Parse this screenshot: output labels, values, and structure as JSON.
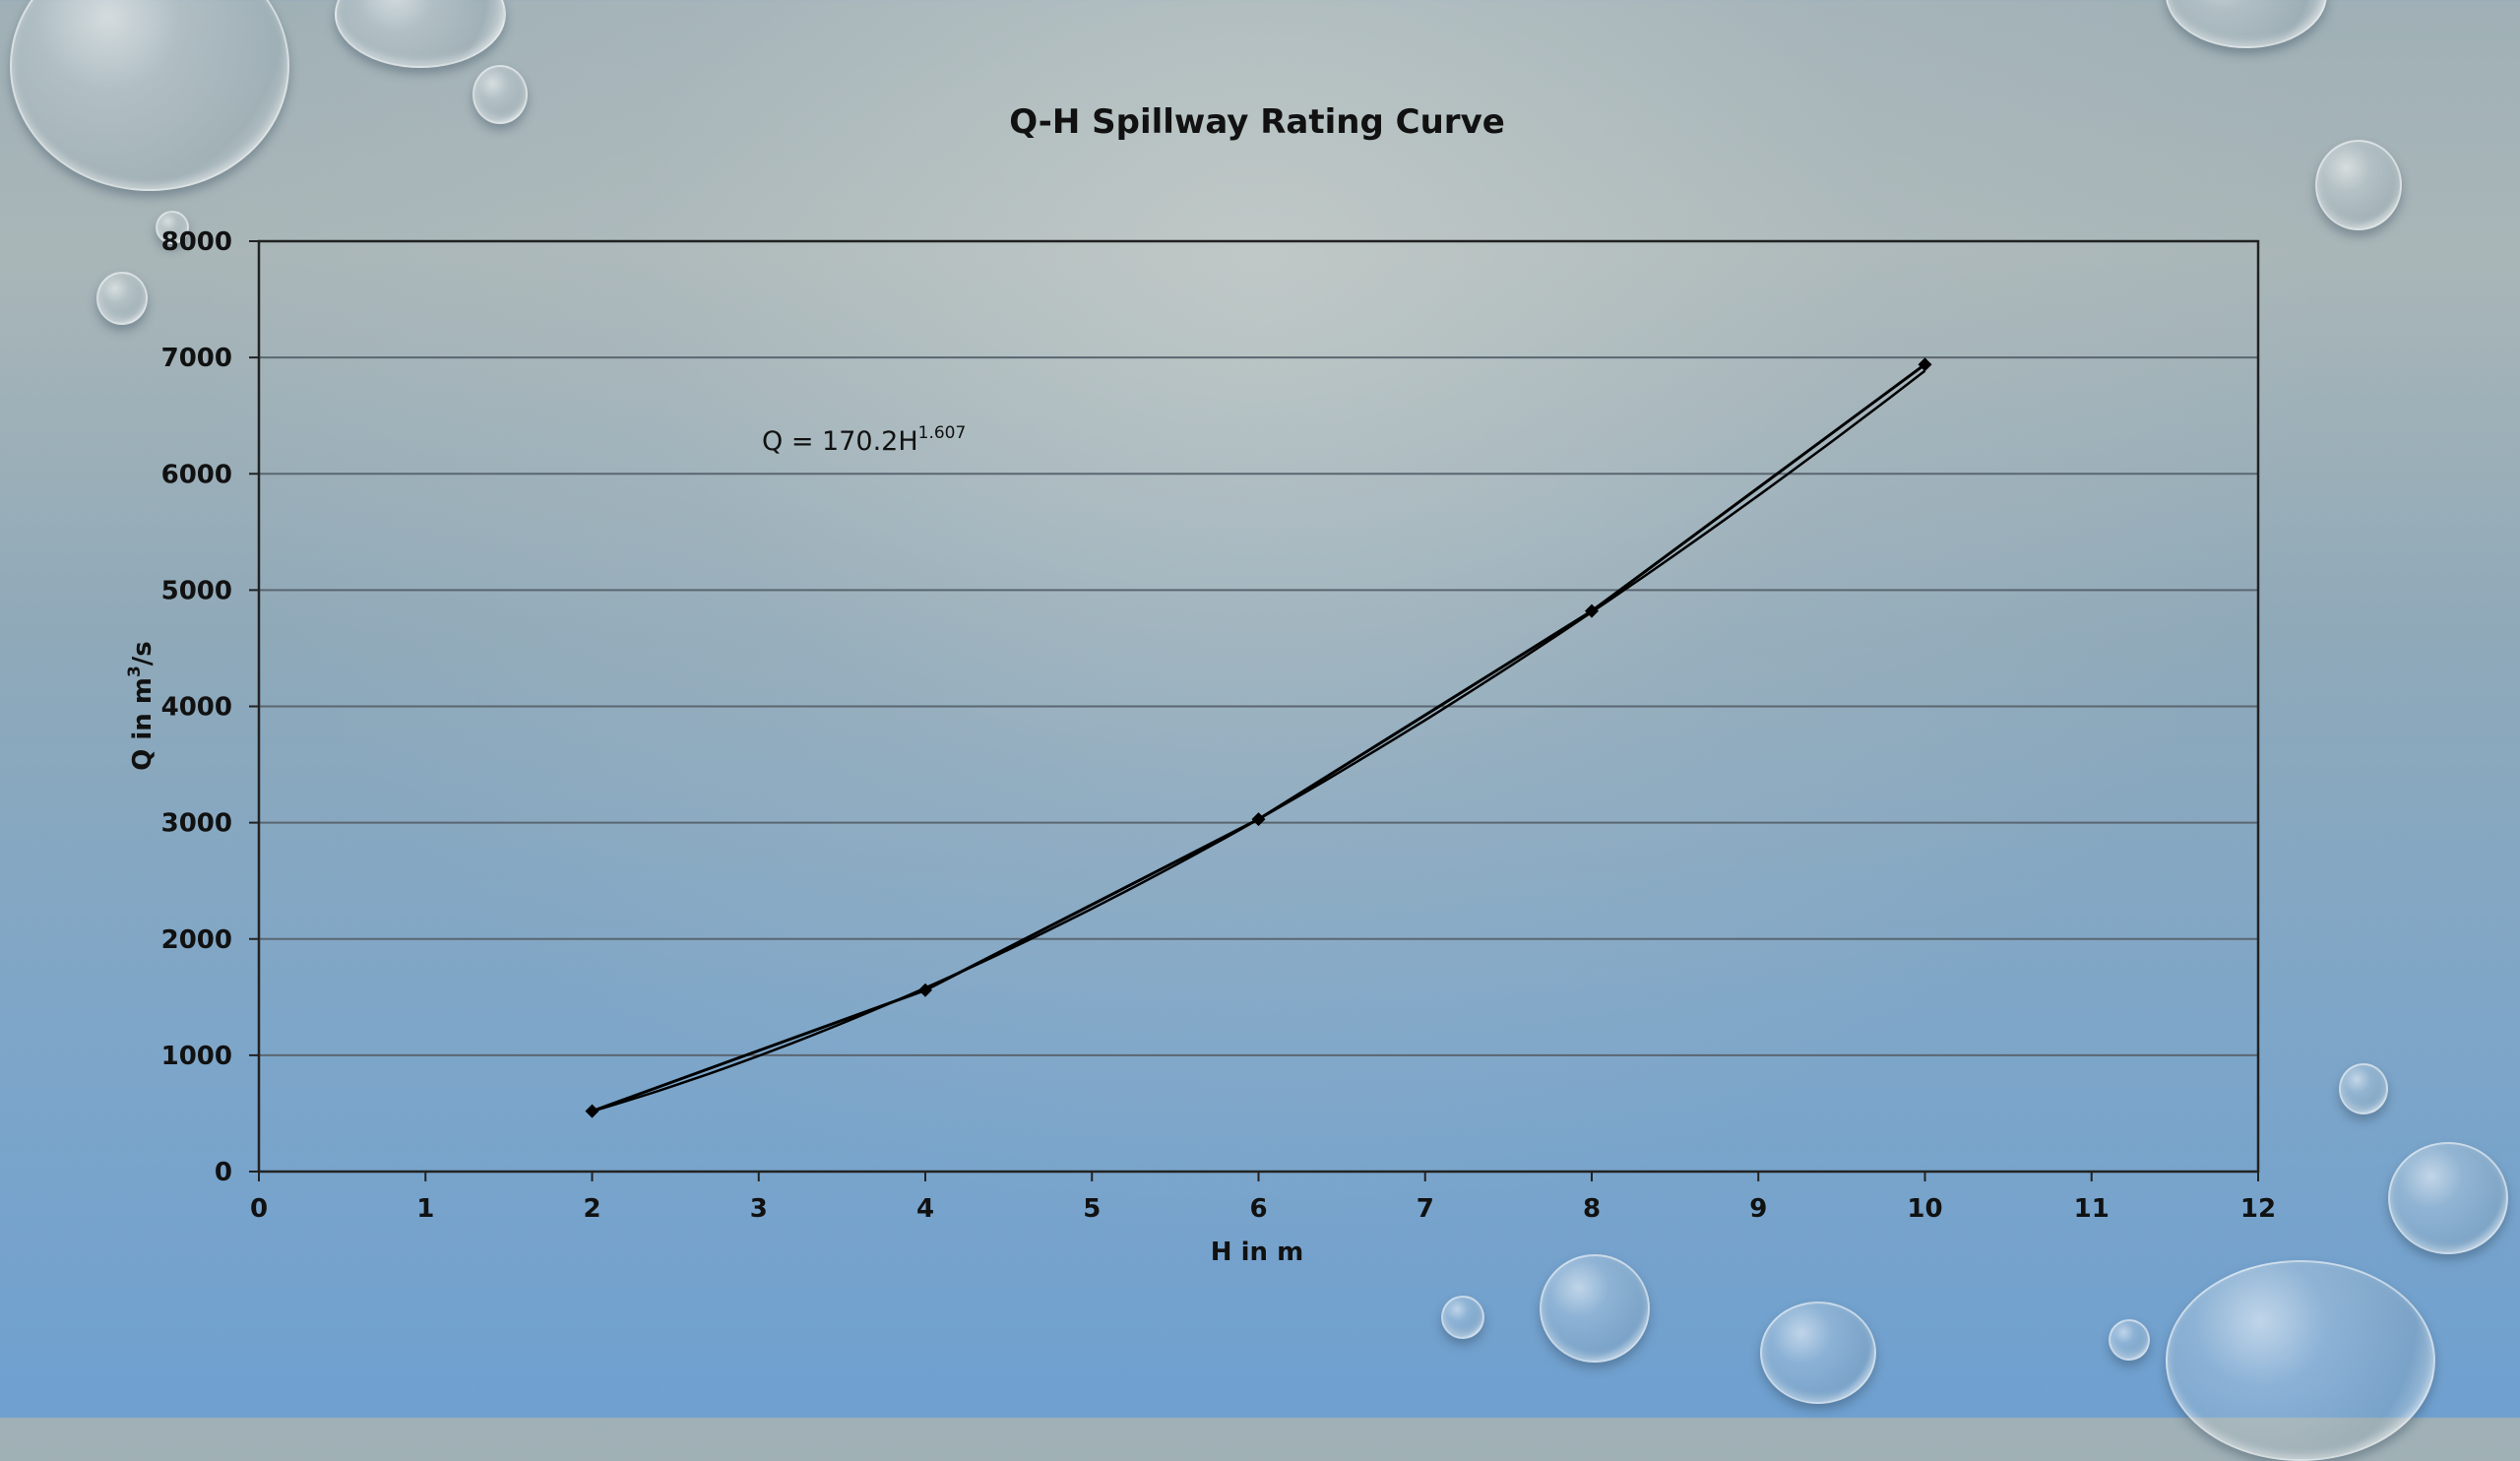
{
  "chart_data": {
    "type": "line",
    "title": "Q-H Spillway Rating Curve",
    "xlabel": "H in m",
    "ylabel_main": "Q  in m",
    "ylabel_sup": "3",
    "ylabel_tail": "/s",
    "xlim": [
      0,
      12
    ],
    "ylim": [
      0,
      8000
    ],
    "x_ticks": [
      0,
      1,
      2,
      3,
      4,
      5,
      6,
      7,
      8,
      9,
      10,
      11,
      12
    ],
    "y_ticks": [
      0,
      1000,
      2000,
      3000,
      4000,
      5000,
      6000,
      7000,
      8000
    ],
    "grid": "horizontal",
    "legend": "none",
    "annotation": {
      "base": "Q = 170.2H",
      "exponent": "1.607"
    },
    "series": [
      {
        "x": [
          2,
          4,
          6,
          8,
          10
        ],
        "y": [
          520,
          1560,
          3030,
          4820,
          6940
        ],
        "marker": "diamond",
        "color": "#000000"
      }
    ],
    "fit": {
      "coef": 170.2,
      "exp": 1.607,
      "color": "#000000"
    }
  }
}
